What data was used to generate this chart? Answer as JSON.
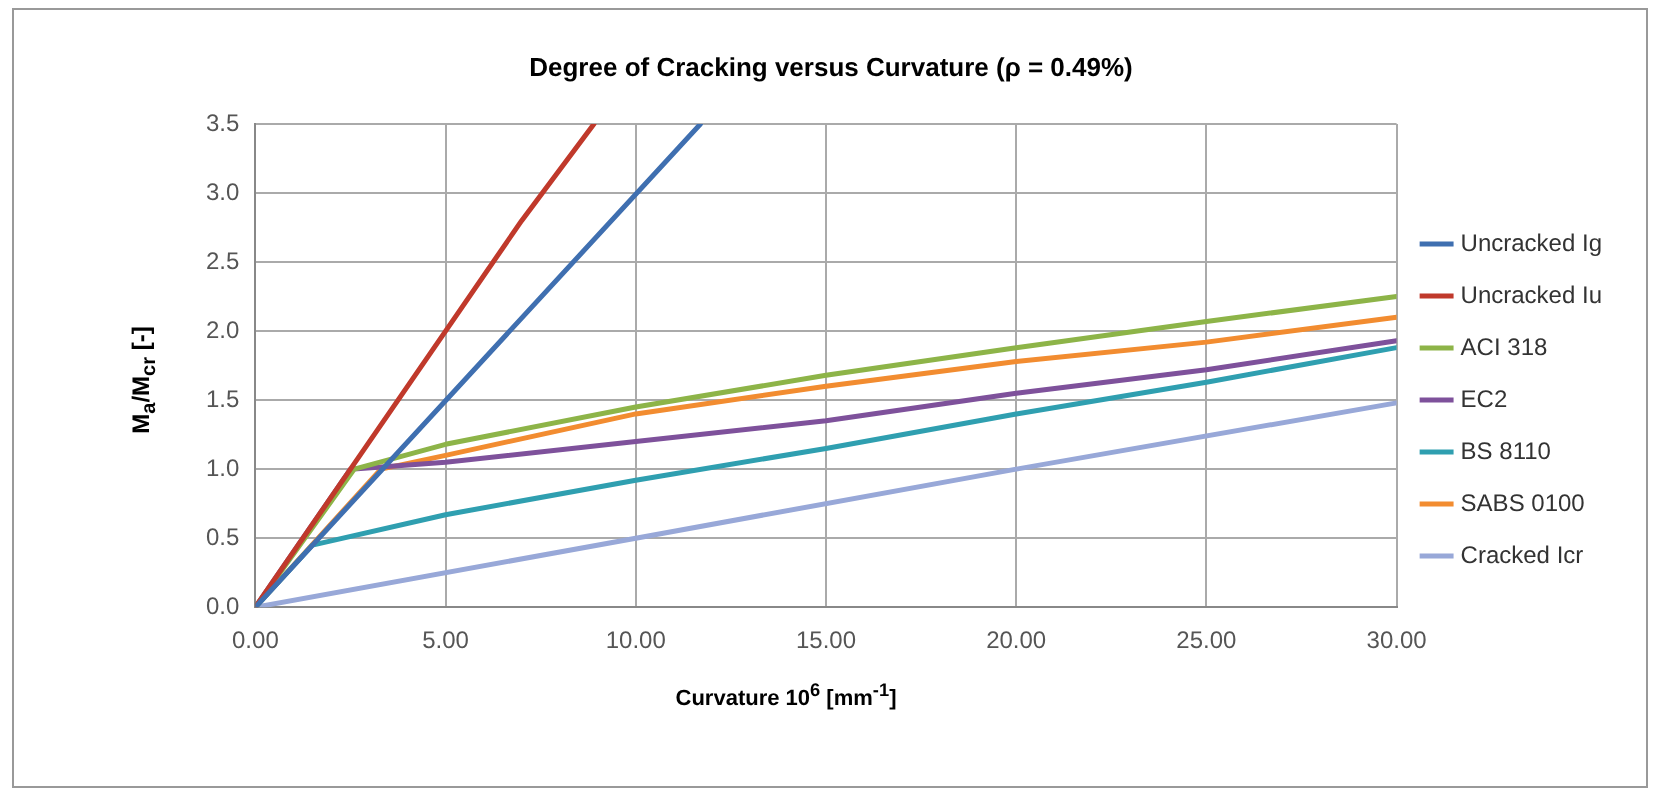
{
  "chart_data": {
    "type": "line",
    "title": "Degree of Cracking versus Curvature  (ρ = 0.49%)",
    "xlabel": "Curvature 10$^{6}$ [mm$^{-1}$]",
    "ylabel": "M$_{a}$/M$_{cr}$ [-]",
    "xlim": [
      0,
      30
    ],
    "xticks": [
      {
        "value": 0,
        "label": "0.00"
      },
      {
        "value": 5,
        "label": "5.00"
      },
      {
        "value": 10,
        "label": "10.00"
      },
      {
        "value": 15,
        "label": "15.00"
      },
      {
        "value": 20,
        "label": "20.00"
      },
      {
        "value": 25,
        "label": "25.00"
      },
      {
        "value": 30,
        "label": "30.00"
      }
    ],
    "ylim": [
      0,
      3.5
    ],
    "yticks": [
      {
        "value": 0,
        "label": "0.0"
      },
      {
        "value": 0.5,
        "label": "0.5"
      },
      {
        "value": 1,
        "label": "1.0"
      },
      {
        "value": 1.5,
        "label": "1.5"
      },
      {
        "value": 2,
        "label": "2.0"
      },
      {
        "value": 2.5,
        "label": "2.5"
      },
      {
        "value": 3,
        "label": "3.0"
      },
      {
        "value": 3.5,
        "label": "3.5"
      }
    ],
    "grid": true,
    "legend": "right",
    "marker": "none",
    "series": [
      {
        "name": "Uncracked Ig",
        "color": "#3f6fb0",
        "x": [
          0,
          11.7
        ],
        "values": [
          0,
          3.5
        ]
      },
      {
        "name": "Uncracked Iu",
        "color": "#c0392b",
        "x": [
          0,
          2.5,
          5,
          7,
          8.9
        ],
        "values": [
          0,
          1.0,
          2.0,
          2.8,
          3.5
        ]
      },
      {
        "name": "ACI 318",
        "color": "#8db448",
        "x": [
          0,
          2.6,
          5,
          10,
          15,
          20,
          25,
          30
        ],
        "values": [
          0,
          1.0,
          1.18,
          1.45,
          1.68,
          1.88,
          2.07,
          2.25
        ]
      },
      {
        "name": "EC2",
        "color": "#7e519b",
        "x": [
          0,
          2.5,
          5,
          10,
          15,
          20,
          25,
          30
        ],
        "values": [
          0,
          1.0,
          1.05,
          1.2,
          1.35,
          1.55,
          1.72,
          1.93
        ]
      },
      {
        "name": "BS 8110",
        "color": "#2f9fb0",
        "x": [
          0,
          1.5,
          5,
          10,
          15,
          20,
          25,
          30
        ],
        "values": [
          0,
          0.45,
          0.67,
          0.92,
          1.15,
          1.4,
          1.63,
          1.88
        ]
      },
      {
        "name": "SABS 0100",
        "color": "#f28c30",
        "x": [
          0,
          3.3,
          5,
          10,
          15,
          20,
          25,
          30
        ],
        "values": [
          0,
          1.0,
          1.1,
          1.4,
          1.6,
          1.78,
          1.92,
          2.1
        ]
      },
      {
        "name": "Cracked Icr",
        "color": "#98a8d8",
        "x": [
          0,
          10,
          20,
          30
        ],
        "values": [
          0,
          0.5,
          1.0,
          1.48
        ]
      }
    ]
  }
}
